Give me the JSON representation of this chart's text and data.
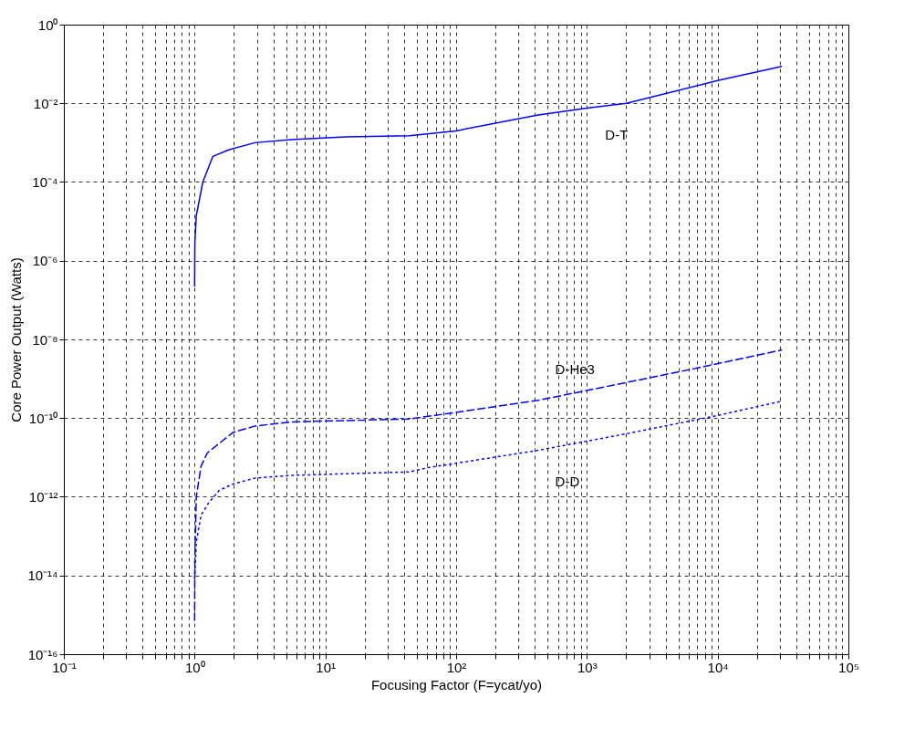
{
  "chart_data": {
    "type": "line",
    "xlabel": "Focusing Factor (F=ycat/yo)",
    "ylabel": "Core Power Output (Watts)",
    "log": "xy",
    "grid": true,
    "xlim": [
      0.1,
      100000
    ],
    "ylim": [
      1e-16,
      1
    ],
    "xticks": [
      {
        "value": 0.1,
        "label": "10⁻¹"
      },
      {
        "value": 0.2,
        "label": null
      },
      {
        "value": 0.3,
        "label": null
      },
      {
        "value": 0.4,
        "label": null
      },
      {
        "value": 0.5,
        "label": null
      },
      {
        "value": 0.6,
        "label": null
      },
      {
        "value": 0.7,
        "label": null
      },
      {
        "value": 0.8,
        "label": null
      },
      {
        "value": 0.9,
        "label": null
      },
      {
        "value": 1,
        "label": "10⁰"
      },
      {
        "value": 2,
        "label": null
      },
      {
        "value": 3,
        "label": null
      },
      {
        "value": 4,
        "label": null
      },
      {
        "value": 5,
        "label": null
      },
      {
        "value": 6,
        "label": null
      },
      {
        "value": 7,
        "label": null
      },
      {
        "value": 8,
        "label": null
      },
      {
        "value": 9,
        "label": null
      },
      {
        "value": 10,
        "label": "10¹"
      },
      {
        "value": 20,
        "label": null
      },
      {
        "value": 30,
        "label": null
      },
      {
        "value": 40,
        "label": null
      },
      {
        "value": 50,
        "label": null
      },
      {
        "value": 60,
        "label": null
      },
      {
        "value": 70,
        "label": null
      },
      {
        "value": 80,
        "label": null
      },
      {
        "value": 90,
        "label": null
      },
      {
        "value": 100,
        "label": "10²"
      },
      {
        "value": 200,
        "label": null
      },
      {
        "value": 300,
        "label": null
      },
      {
        "value": 400,
        "label": null
      },
      {
        "value": 500,
        "label": null
      },
      {
        "value": 600,
        "label": null
      },
      {
        "value": 700,
        "label": null
      },
      {
        "value": 800,
        "label": null
      },
      {
        "value": 900,
        "label": null
      },
      {
        "value": 1000,
        "label": "10³"
      },
      {
        "value": 2000,
        "label": null
      },
      {
        "value": 3000,
        "label": null
      },
      {
        "value": 4000,
        "label": null
      },
      {
        "value": 5000,
        "label": null
      },
      {
        "value": 6000,
        "label": null
      },
      {
        "value": 7000,
        "label": null
      },
      {
        "value": 8000,
        "label": null
      },
      {
        "value": 9000,
        "label": null
      },
      {
        "value": 10000,
        "label": "10⁴"
      },
      {
        "value": 20000,
        "label": null
      },
      {
        "value": 30000,
        "label": null
      },
      {
        "value": 40000,
        "label": null
      },
      {
        "value": 50000,
        "label": null
      },
      {
        "value": 60000,
        "label": null
      },
      {
        "value": 70000,
        "label": null
      },
      {
        "value": 80000,
        "label": null
      },
      {
        "value": 90000,
        "label": null
      },
      {
        "value": 100000,
        "label": "10⁵"
      }
    ],
    "yticks": [
      {
        "value": 1e-16,
        "label": "10⁻¹⁶"
      },
      {
        "value": 1e-14,
        "label": "10⁻¹⁴"
      },
      {
        "value": 1e-12,
        "label": "10⁻¹²"
      },
      {
        "value": 1e-10,
        "label": "10⁻¹⁰"
      },
      {
        "value": 1e-08,
        "label": "10⁻⁸"
      },
      {
        "value": 1e-06,
        "label": "10⁻⁶"
      },
      {
        "value": 0.0001,
        "label": "10⁻⁴"
      },
      {
        "value": 0.01,
        "label": "10⁻²"
      },
      {
        "value": 1,
        "label": "10⁰"
      }
    ],
    "series": [
      {
        "name": "D-T",
        "color": "#0000ff",
        "line_style": "solid",
        "x": [
          1,
          1.005,
          1.03,
          1.155,
          1.38,
          1.8,
          2.9,
          5.5,
          14.4,
          44,
          100,
          415,
          1000,
          2000,
          10000,
          31000
        ],
        "values": [
          2.2e-07,
          3e-06,
          1.4e-05,
          0.0001,
          0.00045,
          0.00065,
          0.001,
          0.0012,
          0.0014,
          0.0015,
          0.002,
          0.005,
          0.0076,
          0.01,
          0.038,
          0.087
        ]
      },
      {
        "name": "D-He3",
        "color": "#0000ff",
        "line_style": "dashed",
        "x": [
          1,
          1.005,
          1.03,
          1.12,
          1.25,
          1.96,
          2.9,
          5.5,
          44,
          100,
          415,
          1400,
          6600,
          31000
        ],
        "values": [
          7e-16,
          3e-14,
          1e-12,
          6e-12,
          1.3e-11,
          4.3e-11,
          6.3e-11,
          8e-11,
          9.5e-11,
          1.4e-10,
          2.8e-10,
          6.3e-10,
          1.8e-09,
          5.4e-09
        ]
      },
      {
        "name": "D-D",
        "color": "#0000ff",
        "line_style": "dotted",
        "x": [
          1,
          1.03,
          1.12,
          1.28,
          1.54,
          1.96,
          2.9,
          5.5,
          44,
          61,
          415,
          2000,
          9800,
          31000
        ],
        "values": [
          8e-15,
          7e-14,
          3.4e-13,
          7e-13,
          1.45e-12,
          2.1e-12,
          3e-12,
          3.5e-12,
          4.3e-12,
          5.5e-12,
          1.5e-11,
          4e-11,
          1.15e-10,
          2.7e-10
        ]
      }
    ]
  }
}
